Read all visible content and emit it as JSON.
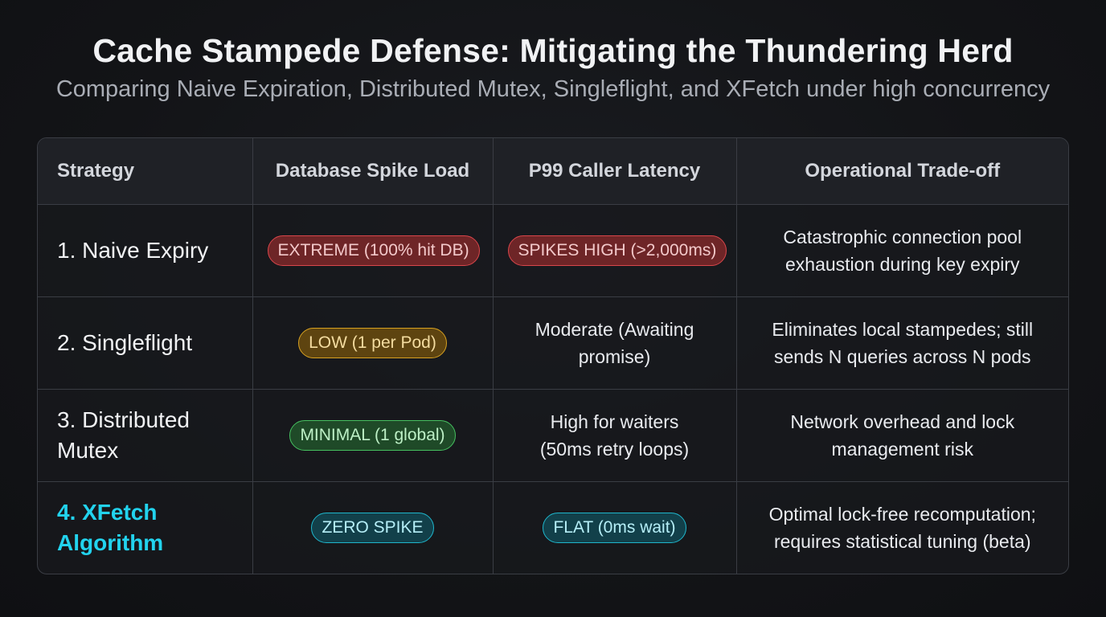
{
  "title": "Cache Stampede Defense: Mitigating the Thundering Herd",
  "subtitle": "Comparing Naive Expiration, Distributed Mutex, Singleflight, and XFetch under high concurrency",
  "colors": {
    "background": "#131417",
    "highlight": "#22d3ee",
    "badge_red": "#d9464b",
    "badge_amber": "#d6a021",
    "badge_green": "#46c060",
    "badge_cyan": "#1fb6cc"
  },
  "table": {
    "headers": [
      "Strategy",
      "Database Spike Load",
      "P99 Caller Latency",
      "Operational Trade-off"
    ],
    "rows": [
      {
        "strategy": "1. Naive Expiry",
        "db_load": "EXTREME (100% hit DB)",
        "latency": "SPIKES HIGH (>2,000ms)",
        "tradeoff": "Catastrophic connection pool exhaustion during key expiry"
      },
      {
        "strategy": "2. Singleflight",
        "db_load": "LOW (1 per Pod)",
        "latency": "Moderate (Awaiting promise)",
        "tradeoff": "Eliminates local stampedes; still sends N queries across N pods"
      },
      {
        "strategy": "3. Distributed Mutex",
        "db_load": "MINIMAL (1 global)",
        "latency": "High for waiters (50ms retry loops)",
        "tradeoff": "Network overhead and lock management risk"
      },
      {
        "strategy": "4. XFetch Algorithm",
        "db_load": "ZERO SPIKE",
        "latency": "FLAT (0ms wait)",
        "tradeoff": "Optimal lock-free recomputation; requires statistical tuning (beta)"
      }
    ]
  }
}
